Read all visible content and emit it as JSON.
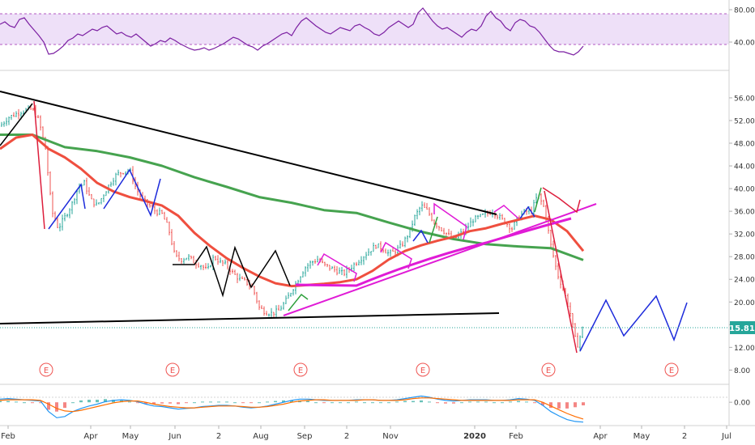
{
  "chart_data": [
    {
      "panel": "rsi",
      "type": "line",
      "yticks": [
        40,
        80
      ],
      "ytick_labels": [
        "40.00",
        "80.00"
      ],
      "ylim": [
        22,
        88
      ],
      "band": [
        30,
        70
      ],
      "x": [
        0,
        6,
        12,
        18,
        24,
        30,
        36,
        42,
        48,
        54,
        60,
        66,
        72,
        78,
        84,
        90,
        96,
        102,
        108,
        114,
        120,
        126,
        132,
        138,
        144,
        150,
        156,
        162,
        168,
        174,
        180,
        186,
        192,
        198,
        204,
        210,
        216,
        222,
        228,
        234,
        240,
        246,
        252,
        258,
        264,
        270,
        276,
        282,
        288,
        294,
        300,
        306,
        312,
        318,
        324,
        330,
        336,
        342,
        348,
        354,
        360,
        366,
        372,
        378,
        384,
        390,
        396,
        402,
        408,
        414,
        420,
        426,
        432,
        438,
        444,
        450,
        456,
        462,
        468,
        474,
        480,
        486,
        492,
        498,
        504,
        510,
        516,
        522,
        528,
        534,
        540,
        546,
        552,
        558,
        564,
        570,
        576,
        582,
        588,
        594,
        600,
        606,
        612,
        618,
        624,
        630,
        636,
        642,
        648,
        654,
        660,
        666,
        672,
        678,
        684,
        690,
        696,
        702,
        708,
        714,
        720
      ],
      "values": [
        62,
        65,
        60,
        58,
        68,
        70,
        62,
        55,
        48,
        40,
        25,
        26,
        30,
        35,
        42,
        45,
        50,
        48,
        52,
        56,
        54,
        58,
        60,
        55,
        50,
        52,
        48,
        46,
        50,
        45,
        40,
        35,
        38,
        42,
        40,
        45,
        42,
        38,
        35,
        32,
        30,
        31,
        33,
        30,
        32,
        35,
        38,
        42,
        46,
        44,
        40,
        36,
        34,
        30,
        35,
        38,
        42,
        46,
        50,
        52,
        48,
        58,
        66,
        70,
        65,
        60,
        56,
        52,
        50,
        54,
        58,
        56,
        54,
        60,
        62,
        58,
        55,
        50,
        48,
        52,
        58,
        62,
        66,
        62,
        58,
        62,
        76,
        82,
        74,
        66,
        60,
        56,
        58,
        54,
        50,
        46,
        52,
        56,
        54,
        60,
        72,
        78,
        70,
        66,
        58,
        54,
        64,
        68,
        66,
        60,
        58,
        52,
        44,
        36,
        30,
        28,
        28,
        26,
        24,
        28,
        35
      ]
    },
    {
      "panel": "price",
      "type": "candlestick",
      "yticks": [
        8,
        12,
        16,
        20,
        24,
        28,
        32,
        36,
        40,
        44,
        48,
        52,
        56
      ],
      "ytick_labels": [
        "8.00",
        "12.00",
        "16.00",
        "20.00",
        "24.00",
        "28.00",
        "32.00",
        "36.00",
        "40.00",
        "44.00",
        "48.00",
        "52.00",
        "56.00"
      ],
      "ylim": [
        6.2,
        59.7
      ],
      "last_price": 15.81,
      "last_price_label": "15.81",
      "earnings_marker": "E",
      "earnings_x": [
        57,
        213,
        371,
        522,
        677,
        829
      ],
      "price_path": {
        "x": [
          0,
          10,
          20,
          30,
          40,
          48,
          56,
          64,
          72,
          80,
          88,
          96,
          104,
          112,
          120,
          128,
          136,
          144,
          152,
          160,
          168,
          176,
          184,
          192,
          200,
          208,
          216,
          224,
          232,
          240,
          248,
          256,
          264,
          272,
          280,
          288,
          296,
          304,
          312,
          320,
          328,
          336,
          344,
          352,
          360,
          368,
          376,
          384,
          392,
          400,
          408,
          416,
          424,
          432,
          440,
          448,
          456,
          464,
          472,
          480,
          488,
          496,
          504,
          512,
          520,
          528,
          536,
          544,
          552,
          560,
          568,
          576,
          584,
          592,
          600,
          608,
          616,
          624,
          632,
          640,
          648,
          656,
          664,
          672,
          680,
          688,
          696,
          704,
          712,
          720
        ],
        "close": [
          51,
          52.5,
          53.2,
          53.8,
          54,
          52,
          47,
          36,
          33,
          35,
          37,
          40,
          41,
          38,
          37,
          39,
          41,
          42.5,
          43,
          43.3,
          40,
          38,
          37,
          36,
          35.5,
          33,
          28,
          27.5,
          28,
          27,
          26.5,
          25.5,
          28,
          27,
          26.5,
          25,
          24,
          23.5,
          22.5,
          19,
          18.2,
          18,
          18.5,
          20,
          22,
          24,
          26,
          27,
          27.5,
          26.5,
          26,
          25.5,
          25,
          26,
          27,
          28,
          29,
          30,
          29.5,
          28.5,
          29,
          30,
          32,
          35,
          37,
          36,
          34,
          33,
          32,
          31,
          32,
          33,
          34.5,
          35,
          35.5,
          36,
          35,
          34,
          33,
          35,
          36,
          36,
          39,
          36.5,
          30,
          25,
          22,
          18,
          12,
          15.81
        ]
      },
      "ma_red": {
        "x": [
          0,
          20,
          40,
          60,
          80,
          100,
          120,
          140,
          160,
          180,
          200,
          220,
          240,
          260,
          280,
          300,
          320,
          340,
          360,
          380,
          400,
          420,
          440,
          460,
          480,
          500,
          520,
          540,
          560,
          580,
          600,
          620,
          640,
          660,
          680,
          700,
          720
        ],
        "values": [
          47,
          49,
          49.5,
          47,
          45.5,
          43.5,
          41,
          39.5,
          38.5,
          37.8,
          37,
          35.2,
          32.2,
          29.8,
          27.7,
          26,
          24.5,
          23.3,
          22.8,
          23,
          23.2,
          23.5,
          24,
          25.5,
          27.5,
          29,
          30,
          30.8,
          31.5,
          32.5,
          33,
          33.8,
          34.5,
          35.2,
          34.5,
          32.5,
          29
        ]
      },
      "ma_green": {
        "x": [
          0,
          40,
          80,
          120,
          160,
          200,
          240,
          280,
          320,
          360,
          400,
          440,
          480,
          520,
          560,
          600,
          640,
          680,
          720
        ],
        "values": [
          49.5,
          49.5,
          47.3,
          46.6,
          45.5,
          44,
          42,
          40.3,
          38.5,
          37.5,
          36.2,
          35.7,
          34,
          32.4,
          31.1,
          30.2,
          29.8,
          29.5,
          27.4
        ]
      }
    },
    {
      "panel": "macd",
      "type": "histogram",
      "yticks": [
        0
      ],
      "ytick_labels": [
        "0.00"
      ],
      "ylim": [
        -3.5,
        2.5
      ],
      "x": [
        0,
        10,
        20,
        30,
        40,
        50,
        60,
        70,
        80,
        90,
        100,
        110,
        120,
        130,
        140,
        150,
        160,
        170,
        180,
        190,
        200,
        210,
        220,
        230,
        240,
        250,
        260,
        270,
        280,
        290,
        300,
        310,
        320,
        330,
        340,
        350,
        360,
        370,
        380,
        390,
        400,
        410,
        420,
        430,
        440,
        450,
        460,
        470,
        480,
        490,
        500,
        510,
        520,
        530,
        540,
        550,
        560,
        570,
        580,
        590,
        600,
        610,
        620,
        630,
        640,
        650,
        660,
        670,
        680,
        690,
        700,
        710,
        720
      ],
      "macd": [
        0.5,
        0.6,
        0.5,
        0.4,
        0.3,
        0.2,
        -1.5,
        -2.5,
        -2.3,
        -1.5,
        -1.0,
        -0.6,
        -0.3,
        0.1,
        0.3,
        0.4,
        0.3,
        0.1,
        -0.3,
        -0.6,
        -0.7,
        -0.9,
        -1.1,
        -1.0,
        -0.9,
        -0.7,
        -0.6,
        -0.5,
        -0.5,
        -0.6,
        -0.8,
        -0.9,
        -0.8,
        -0.6,
        -0.3,
        0.0,
        0.3,
        0.5,
        0.5,
        0.4,
        0.3,
        0.3,
        0.3,
        0.3,
        0.4,
        0.4,
        0.4,
        0.3,
        0.3,
        0.4,
        0.6,
        0.8,
        1.0,
        0.8,
        0.5,
        0.3,
        0.2,
        0.3,
        0.4,
        0.4,
        0.4,
        0.3,
        0.3,
        0.4,
        0.6,
        0.5,
        0.3,
        -0.5,
        -1.5,
        -2.2,
        -2.8,
        -3.1,
        -3.2
      ],
      "signal": [
        0.3,
        0.4,
        0.4,
        0.4,
        0.4,
        0.3,
        -0.3,
        -1.0,
        -1.4,
        -1.5,
        -1.3,
        -1.0,
        -0.7,
        -0.4,
        -0.1,
        0.1,
        0.2,
        0.2,
        0.0,
        -0.3,
        -0.5,
        -0.7,
        -0.8,
        -0.9,
        -0.9,
        -0.8,
        -0.7,
        -0.6,
        -0.6,
        -0.6,
        -0.7,
        -0.8,
        -0.8,
        -0.7,
        -0.5,
        -0.3,
        0.0,
        0.2,
        0.3,
        0.4,
        0.4,
        0.3,
        0.3,
        0.3,
        0.3,
        0.4,
        0.4,
        0.3,
        0.3,
        0.3,
        0.4,
        0.6,
        0.7,
        0.7,
        0.6,
        0.5,
        0.4,
        0.3,
        0.3,
        0.3,
        0.3,
        0.3,
        0.3,
        0.3,
        0.4,
        0.4,
        0.4,
        0.0,
        -0.6,
        -1.2,
        -1.8,
        -2.3,
        -2.7
      ]
    }
  ],
  "x_axis": {
    "labels": [
      "Feb",
      "Apr",
      "May",
      "Jun",
      "2",
      "Aug",
      "Sep",
      "2",
      "Nov",
      "2020",
      "Feb",
      "Apr",
      "May",
      "2",
      "Jul"
    ],
    "x": [
      10,
      112,
      161,
      216,
      270,
      322,
      376,
      428,
      482,
      586,
      637,
      741,
      792,
      845,
      897
    ],
    "bold": [
      "2020"
    ]
  },
  "colors": {
    "up": "#26a69a",
    "down": "#ef5350",
    "rsi_line": "#7b1fa2",
    "rsi_band": "#e8d5f5",
    "ma_red": "#ef4f3f",
    "ma_green": "#46a34f",
    "trendline": "#000000",
    "magenta": "#e01bd6",
    "arrow_blue": "#1d2bdb",
    "arrow_red": "#dd1e3c",
    "arrow_green": "#2ea03b",
    "price_label_bg": "#26a69a",
    "macd_line": "#2196f3",
    "signal_line": "#ff6d00"
  }
}
